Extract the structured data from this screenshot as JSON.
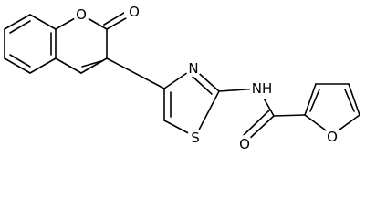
{
  "atoms": [
    {
      "label": "O"
    },
    {
      "label": "O"
    },
    {
      "label": "N"
    },
    {
      "label": "S"
    },
    {
      "label": "NH"
    },
    {
      "label": "O"
    },
    {
      "label": "O"
    }
  ]
}
